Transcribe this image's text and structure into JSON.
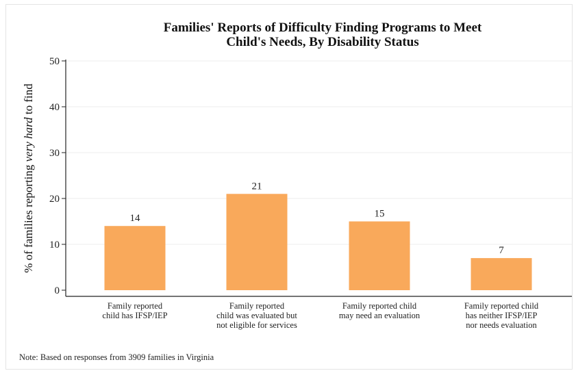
{
  "chart_data": {
    "type": "bar",
    "title_lines": [
      "Families' Reports of Difficulty Finding Programs to Meet",
      "Child's Needs, By Disability Status"
    ],
    "ylabel": {
      "before": "% of families reporting ",
      "emphasis": "very hard",
      "after": " to find"
    },
    "xlabel": "",
    "ylim": [
      0,
      50
    ],
    "yticks": [
      0,
      10,
      20,
      30,
      40,
      50
    ],
    "grid": true,
    "categories": [
      [
        "Family reported",
        "child has IFSP/IEP"
      ],
      [
        "Family reported",
        "child was evaluated but",
        "not eligible for services"
      ],
      [
        "Family reported child",
        "may need an evaluation"
      ],
      [
        "Family reported child",
        "has neither IFSP/IEP",
        "nor needs evaluation"
      ]
    ],
    "values": [
      14,
      21,
      15,
      7
    ],
    "value_labels": [
      "14",
      "21",
      "15",
      "7"
    ],
    "bar_color": "#F9A95B",
    "note": "Note: Based on responses from 3909 families in Virginia"
  }
}
